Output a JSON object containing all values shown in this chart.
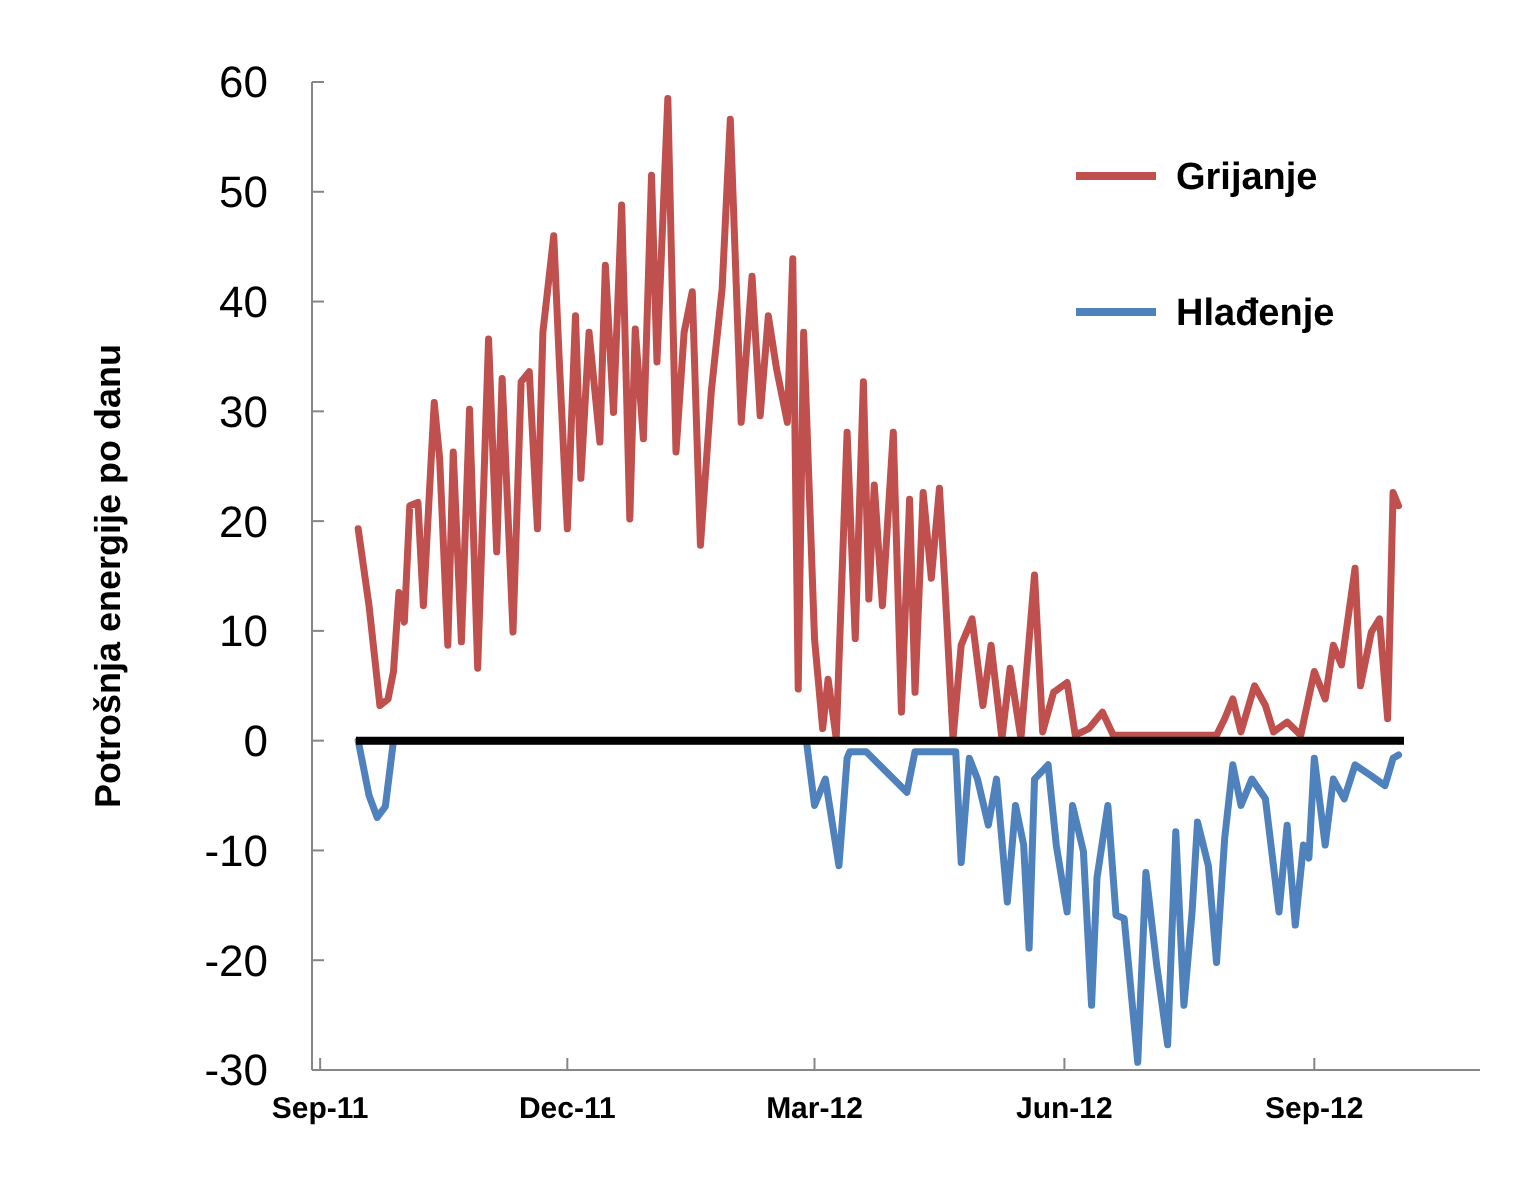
{
  "chart_data": {
    "type": "line",
    "ylabel": "Potrošnja energije po danu",
    "xlim": [
      "2011-08-29",
      "2012-11-01"
    ],
    "ylim": [
      -30,
      60
    ],
    "yticks": [
      -30,
      -20,
      -10,
      0,
      10,
      20,
      30,
      40,
      50,
      60
    ],
    "xticks": [
      {
        "value": "2011-09-01",
        "label": "Sep-11"
      },
      {
        "value": "2011-12-01",
        "label": "Dec-11"
      },
      {
        "value": "2012-03-01",
        "label": "Mar-12"
      },
      {
        "value": "2012-06-01",
        "label": "Jun-12"
      },
      {
        "value": "2012-09-01",
        "label": "Sep-12"
      }
    ],
    "grid": false,
    "legend": "top right",
    "line_style": "solid",
    "marker": "none",
    "ref_lines": [
      {
        "axis": "y",
        "value": 0,
        "color": "#000000"
      }
    ],
    "series": [
      {
        "name": "Grijanje",
        "color": "#c0504d",
        "x": [
          "2011-09-15",
          "2011-09-19",
          "2011-09-23",
          "2011-09-26",
          "2011-09-28",
          "2011-09-30",
          "2011-10-02",
          "2011-10-04",
          "2011-10-07",
          "2011-10-09",
          "2011-10-13",
          "2011-10-15",
          "2011-10-18",
          "2011-10-20",
          "2011-10-23",
          "2011-10-26",
          "2011-10-29",
          "2011-11-02",
          "2011-11-05",
          "2011-11-07",
          "2011-11-11",
          "2011-11-14",
          "2011-11-17",
          "2011-11-20",
          "2011-11-22",
          "2011-11-26",
          "2011-11-28",
          "2011-12-01",
          "2011-12-04",
          "2011-12-06",
          "2011-12-09",
          "2011-12-13",
          "2011-12-15",
          "2011-12-18",
          "2011-12-21",
          "2011-12-24",
          "2011-12-26",
          "2011-12-29",
          "2012-01-01",
          "2012-01-03",
          "2012-01-07",
          "2012-01-10",
          "2012-01-13",
          "2012-01-16",
          "2012-01-19",
          "2012-01-23",
          "2012-01-27",
          "2012-01-30",
          "2012-02-03",
          "2012-02-07",
          "2012-02-10",
          "2012-02-13",
          "2012-02-16",
          "2012-02-20",
          "2012-02-22",
          "2012-02-24",
          "2012-02-26",
          "2012-03-01",
          "2012-03-04",
          "2012-03-06",
          "2012-03-09",
          "2012-03-13",
          "2012-03-16",
          "2012-03-19",
          "2012-03-21",
          "2012-03-23",
          "2012-03-26",
          "2012-03-30",
          "2012-04-02",
          "2012-04-05",
          "2012-04-07",
          "2012-04-10",
          "2012-04-13",
          "2012-04-16",
          "2012-04-18",
          "2012-04-21",
          "2012-04-24",
          "2012-04-28",
          "2012-05-02",
          "2012-05-05",
          "2012-05-09",
          "2012-05-12",
          "2012-05-16",
          "2012-05-21",
          "2012-05-24",
          "2012-05-28",
          "2012-06-02",
          "2012-06-05",
          "2012-06-10",
          "2012-06-15",
          "2012-06-19",
          "2012-06-30",
          "2012-07-15",
          "2012-07-27",
          "2012-07-30",
          "2012-08-02",
          "2012-08-05",
          "2012-08-10",
          "2012-08-14",
          "2012-08-17",
          "2012-08-22",
          "2012-08-27",
          "2012-09-01",
          "2012-09-05",
          "2012-09-08",
          "2012-09-11",
          "2012-09-16",
          "2012-09-18",
          "2012-09-22",
          "2012-09-25",
          "2012-09-28",
          "2012-09-30",
          "2012-10-02"
        ],
        "values": [
          19.3,
          12.3,
          3.2,
          3.8,
          6.3,
          13.5,
          10.8,
          21.4,
          21.7,
          12.3,
          30.8,
          25.7,
          8.7,
          26.3,
          9.0,
          30.2,
          6.6,
          36.6,
          17.2,
          33.0,
          9.9,
          32.7,
          33.6,
          19.3,
          37.2,
          46.0,
          34.8,
          19.3,
          38.7,
          23.9,
          37.2,
          27.2,
          43.3,
          29.9,
          48.8,
          20.2,
          37.5,
          27.5,
          51.5,
          34.5,
          58.5,
          26.3,
          37.2,
          40.9,
          17.8,
          31.8,
          41.2,
          56.6,
          29.0,
          42.3,
          29.6,
          38.7,
          33.9,
          29.0,
          43.9,
          4.7,
          37.2,
          9.3,
          1.1,
          5.6,
          0.2,
          28.1,
          9.3,
          32.7,
          12.9,
          23.3,
          12.3,
          28.1,
          2.6,
          22.0,
          4.4,
          22.6,
          14.8,
          23.0,
          14.1,
          0.2,
          8.7,
          11.1,
          3.2,
          8.7,
          0.2,
          6.6,
          0.2,
          15.1,
          0.8,
          4.4,
          5.3,
          0.5,
          1.1,
          2.6,
          0.5,
          0.5,
          0.5,
          0.5,
          2.0,
          3.8,
          0.8,
          5.0,
          3.2,
          0.8,
          1.7,
          0.5,
          6.3,
          3.8,
          8.7,
          6.9,
          15.7,
          5.0,
          9.9,
          11.1,
          2.0,
          22.6,
          21.4
        ]
      },
      {
        "name": "Hlađenje",
        "color": "#4f81bd",
        "x": [
          "2011-09-15",
          "2011-09-19",
          "2011-09-22",
          "2011-09-25",
          "2011-09-28",
          "2011-09-30",
          "2012-02-27",
          "2012-03-01",
          "2012-03-03",
          "2012-03-05",
          "2012-03-10",
          "2012-03-13",
          "2012-03-14",
          "2012-03-20",
          "2012-04-04",
          "2012-04-07",
          "2012-04-22",
          "2012-04-24",
          "2012-04-27",
          "2012-04-30",
          "2012-05-04",
          "2012-05-07",
          "2012-05-11",
          "2012-05-14",
          "2012-05-17",
          "2012-05-19",
          "2012-05-21",
          "2012-05-26",
          "2012-05-29",
          "2012-06-02",
          "2012-06-04",
          "2012-06-08",
          "2012-06-11",
          "2012-06-13",
          "2012-06-17",
          "2012-06-20",
          "2012-06-23",
          "2012-06-28",
          "2012-07-01",
          "2012-07-05",
          "2012-07-09",
          "2012-07-12",
          "2012-07-15",
          "2012-07-18",
          "2012-07-20",
          "2012-07-24",
          "2012-07-27",
          "2012-07-30",
          "2012-08-02",
          "2012-08-05",
          "2012-08-09",
          "2012-08-14",
          "2012-08-19",
          "2012-08-22",
          "2012-08-25",
          "2012-08-28",
          "2012-08-30",
          "2012-09-01",
          "2012-09-05",
          "2012-09-08",
          "2012-09-12",
          "2012-09-16",
          "2012-09-22",
          "2012-09-27",
          "2012-09-30",
          "2012-10-02"
        ],
        "values": [
          0,
          -5,
          -7,
          -6,
          0,
          0,
          0,
          -5.9,
          -4.7,
          -3.5,
          -11.4,
          -1.6,
          -1.0,
          -1.0,
          -4.7,
          -1.0,
          -1.0,
          -11.1,
          -1.6,
          -3.5,
          -7.7,
          -3.5,
          -14.7,
          -5.9,
          -9.5,
          -18.9,
          -3.5,
          -2.2,
          -9.5,
          -15.6,
          -5.9,
          -10.1,
          -24.1,
          -12.5,
          -5.9,
          -15.9,
          -16.2,
          -29.3,
          -12.0,
          -20.5,
          -27.7,
          -8.3,
          -24.1,
          -15.6,
          -7.4,
          -11.4,
          -20.2,
          -8.9,
          -2.2,
          -5.9,
          -3.5,
          -5.3,
          -15.6,
          -7.7,
          -16.8,
          -9.5,
          -10.7,
          -1.6,
          -9.5,
          -3.5,
          -5.3,
          -2.2,
          -3.2,
          -4.1,
          -1.6,
          -1.3
        ]
      }
    ]
  }
}
